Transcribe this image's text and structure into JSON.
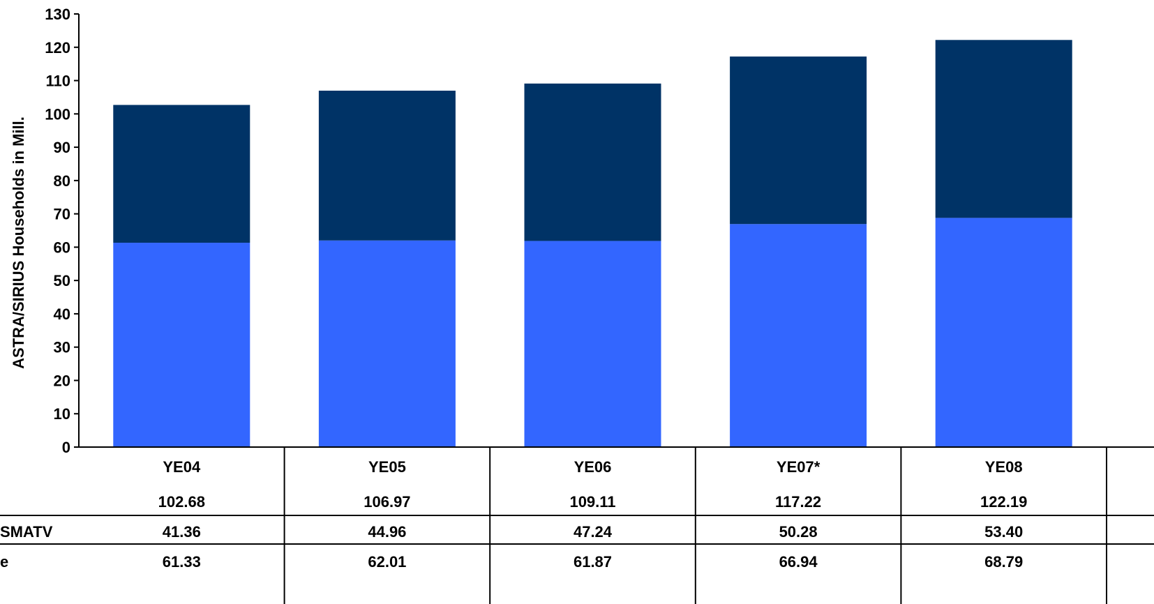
{
  "chart_data": {
    "type": "bar",
    "stacked": true,
    "ylabel": "ASTRA/SIRIUS Households in Mill.",
    "ylim": [
      0,
      130
    ],
    "yticks": [
      0,
      10,
      20,
      30,
      40,
      50,
      60,
      70,
      80,
      90,
      100,
      110,
      120,
      130
    ],
    "grid": false,
    "legend": "none",
    "categories": [
      "YE04",
      "YE05",
      "YE06",
      "YE07*",
      "YE08"
    ],
    "totals": [
      "102.68",
      "106.97",
      "109.11",
      "117.22",
      "122.19"
    ],
    "series": [
      {
        "name": "e",
        "color": "#3366ff",
        "values": [
          61.33,
          62.01,
          61.87,
          66.94,
          68.79
        ],
        "labels": [
          "61.33",
          "62.01",
          "61.87",
          "66.94",
          "68.79"
        ]
      },
      {
        "name": "SMATV",
        "color": "#003366",
        "values": [
          41.36,
          44.96,
          47.24,
          50.28,
          53.4
        ],
        "labels": [
          "41.36",
          "44.96",
          "47.24",
          "50.28",
          "53.40"
        ]
      }
    ]
  }
}
